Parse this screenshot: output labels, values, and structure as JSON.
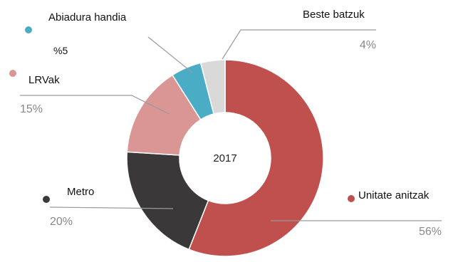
{
  "chart_data": {
    "type": "pie",
    "center_label": "2017",
    "slices": [
      {
        "label": "Unitate anitzak",
        "value": 56,
        "value_label": "56%",
        "color": "#c0504d"
      },
      {
        "label": "Metro",
        "value": 20,
        "value_label": "20%",
        "color": "#3a3838"
      },
      {
        "label": "LRVak",
        "value": 15,
        "value_label": "15%",
        "color": "#d99694"
      },
      {
        "label": "Abiadura handia",
        "value": 5,
        "value_label": "%5",
        "color": "#4bacc6"
      },
      {
        "label": "Beste batzuk",
        "value": 4,
        "value_label": "4%",
        "color": "#d9d9d9"
      }
    ]
  }
}
